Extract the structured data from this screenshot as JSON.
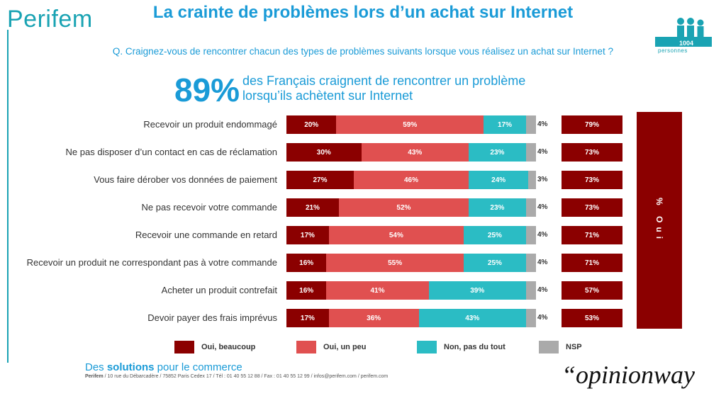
{
  "brand": {
    "logo": "Perifem"
  },
  "header": {
    "title": "La crainte de problèmes lors d’un achat sur Internet",
    "question": "Q. Craignez-vous de rencontrer chacun des types de problèmes suivants lorsque vous réalisez un achat sur Internet ?",
    "headline_value": "89%",
    "headline_text_1": "des Français craignent de rencontrer un problème",
    "headline_text_2": "lorsqu’ils achètent sur Internet"
  },
  "sample": {
    "count": "1004",
    "label": "personnes"
  },
  "sidebar": {
    "label": "% Oui"
  },
  "footer": {
    "slogan_pre": "Des ",
    "slogan_bold": "solutions",
    "slogan_post": " pour le commerce",
    "address_bold": "Perifem",
    "address_rest": " / 10 rue du Débarcadère / 75852 Paris Cedex 17 / Tél : 01 40 55 12 88 / Fax : 01 40 55 12 99 / infos@perifem.com / perifem.com",
    "opinionway": "“opinionway"
  },
  "chart_data": {
    "type": "bar",
    "orientation": "horizontal-stacked",
    "title": "La crainte de problèmes lors d’un achat sur Internet",
    "categories": [
      "Recevoir un produit endommagé",
      "Ne pas disposer d’un contact en cas de réclamation",
      "Vous faire dérober vos données de paiement",
      "Ne pas recevoir votre commande",
      "Recevoir une commande en retard",
      "Recevoir un produit ne correspondant pas à votre commande",
      "Acheter un produit contrefait",
      "Devoir payer des frais imprévus"
    ],
    "series": [
      {
        "name": "Oui, beaucoup",
        "color": "#8b0000",
        "values": [
          20,
          30,
          27,
          21,
          17,
          16,
          16,
          17
        ]
      },
      {
        "name": "Oui, un peu",
        "color": "#e05050",
        "values": [
          59,
          43,
          46,
          52,
          54,
          55,
          41,
          36
        ]
      },
      {
        "name": "Non, pas du tout",
        "color": "#2bbcc4",
        "values": [
          17,
          23,
          24,
          23,
          25,
          25,
          39,
          43
        ]
      },
      {
        "name": "NSP",
        "color": "#aaaaaa",
        "values": [
          4,
          4,
          3,
          4,
          4,
          4,
          4,
          4
        ]
      }
    ],
    "total_oui": [
      79,
      73,
      73,
      73,
      71,
      71,
      57,
      53
    ],
    "total_oui_label": "% Oui",
    "xlim": [
      0,
      100
    ],
    "legend_position": "bottom"
  }
}
